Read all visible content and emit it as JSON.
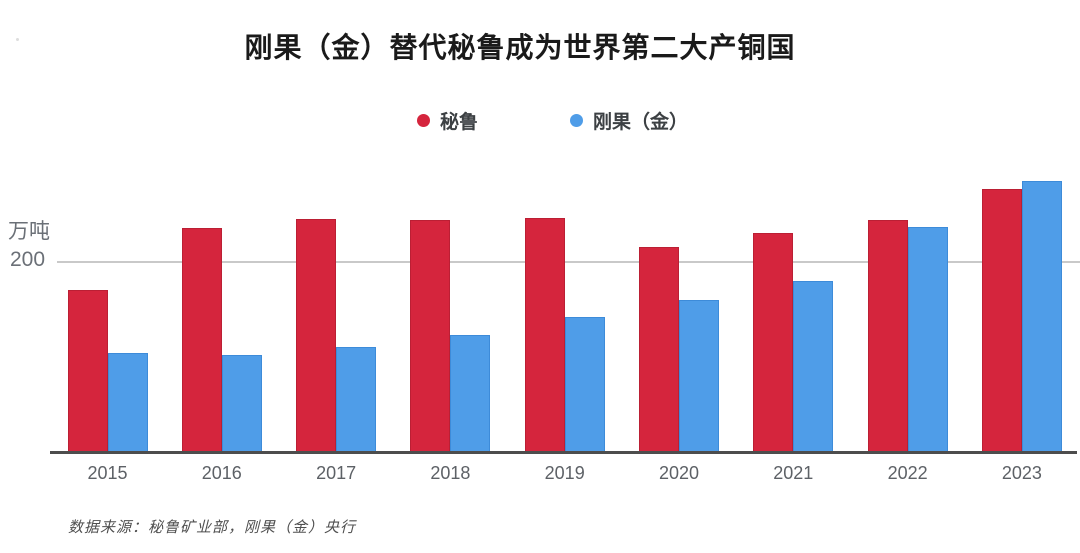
{
  "title": "刚果（金）替代秘鲁成为世界第二大产铜国",
  "legend": {
    "items": [
      {
        "key": "peru",
        "label": "秘鲁",
        "color": "#d5253d"
      },
      {
        "key": "drc",
        "label": "刚果（金）",
        "color": "#4f9de8"
      }
    ]
  },
  "y_axis": {
    "unit_label": "万吨",
    "tick_label": "200"
  },
  "source_note": "数据来源：秘鲁矿业部，刚果（金）央行",
  "chart_data": {
    "type": "bar",
    "title": "刚果（金）替代秘鲁成为世界第二大产铜国",
    "categories": [
      "2015",
      "2016",
      "2017",
      "2018",
      "2019",
      "2020",
      "2021",
      "2022",
      "2023"
    ],
    "series": [
      {
        "key": "peru",
        "name": "秘鲁",
        "color": "#d5253d",
        "edge_color": "#bb1f34",
        "values": [
          170,
          235,
          245,
          244,
          246,
          215,
          230,
          244,
          276
        ]
      },
      {
        "key": "drc",
        "name": "刚果（金）",
        "color": "#4f9de8",
        "edge_color": "#3d8bd9",
        "values": [
          104,
          102,
          110,
          123,
          142,
          160,
          180,
          236,
          284
        ]
      }
    ],
    "xlabel": "",
    "ylabel": "万吨",
    "y_ticks": [
      {
        "value": 200,
        "label": "200"
      }
    ],
    "ylim": [
      0,
      320
    ],
    "grid": "single horizontal gridline at y=200",
    "legend_position": "top-center",
    "source": "数据来源：秘鲁矿业部，刚果（金）央行"
  }
}
